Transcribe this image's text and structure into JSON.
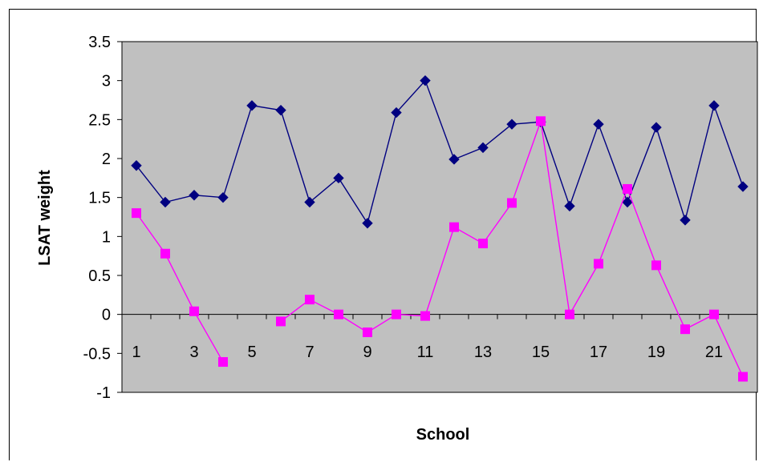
{
  "chart_data": {
    "type": "line",
    "xlabel": "School",
    "ylabel": "LSAT weight",
    "ylim": [
      -1,
      3.5
    ],
    "yticks": [
      "3.5",
      "3",
      "2.5",
      "2",
      "1.5",
      "1",
      "0.5",
      "0",
      "-0.5",
      "-1"
    ],
    "xtick_labels": [
      "1",
      "3",
      "5",
      "7",
      "9",
      "11",
      "13",
      "15",
      "17",
      "19",
      "21"
    ],
    "x": [
      1,
      2,
      3,
      4,
      5,
      6,
      7,
      8,
      9,
      10,
      11,
      12,
      13,
      14,
      15,
      16,
      17,
      18,
      19,
      20,
      21,
      22
    ],
    "grid": false,
    "plot_background": "#c0c0c0",
    "series": [
      {
        "color": "#000080",
        "marker": "diamond",
        "values": [
          1.91,
          1.44,
          1.53,
          1.5,
          2.68,
          2.62,
          1.44,
          1.75,
          1.17,
          2.59,
          3.0,
          1.99,
          2.14,
          2.44,
          2.47,
          1.39,
          2.44,
          1.44,
          2.4,
          1.21,
          2.68,
          1.64
        ]
      },
      {
        "color": "#ff00ff",
        "marker": "square",
        "values": [
          1.3,
          0.78,
          0.04,
          -0.61,
          null,
          -0.09,
          0.19,
          0.0,
          -0.23,
          0.0,
          -0.02,
          1.12,
          0.91,
          1.43,
          2.48,
          0.0,
          0.65,
          1.61,
          0.63,
          -0.19,
          0.0,
          -0.8
        ]
      }
    ]
  }
}
